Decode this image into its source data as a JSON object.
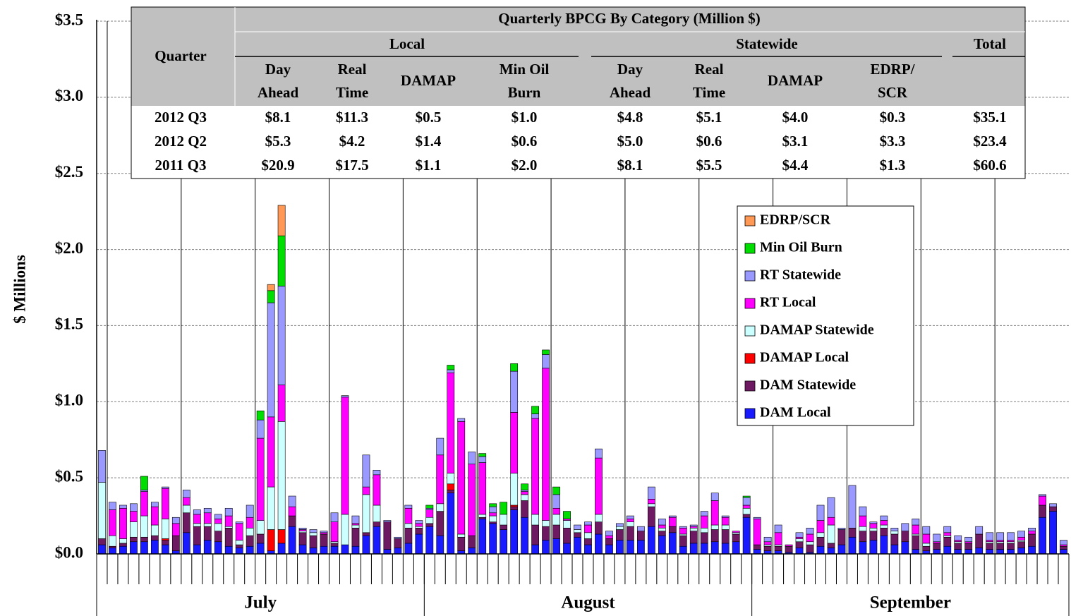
{
  "chart_data": {
    "type": "stacked_bar",
    "ylabel": "$ Millions",
    "ylim": [
      0,
      3.5
    ],
    "yticks": [
      {
        "value": 0,
        "label": "$0.0"
      },
      {
        "value": 0.5,
        "label": "$0.5"
      },
      {
        "value": 1.0,
        "label": "$1.0"
      },
      {
        "value": 1.5,
        "label": "$1.5"
      },
      {
        "value": 2.0,
        "label": "$2.0"
      },
      {
        "value": 2.5,
        "label": "$2.5"
      },
      {
        "value": 3.0,
        "label": "$3.0"
      },
      {
        "value": 3.5,
        "label": "$3.5"
      }
    ],
    "grid": true,
    "legend": "upper right",
    "x_groups": [
      {
        "label": "July",
        "span": 31
      },
      {
        "label": "August",
        "span": 31
      },
      {
        "label": "September",
        "span": 30
      }
    ],
    "categories": [
      null,
      null,
      null,
      null,
      null,
      null,
      null,
      null,
      null,
      null,
      null,
      null,
      null,
      null,
      null,
      null,
      null,
      null,
      null,
      null,
      null,
      null,
      null,
      null,
      null,
      null,
      null,
      null,
      null,
      null,
      null,
      null,
      null,
      null,
      null,
      null,
      null,
      null,
      null,
      null,
      null,
      null,
      null,
      null,
      null,
      null,
      null,
      null,
      null,
      null,
      null,
      null,
      null,
      null,
      null,
      null,
      null,
      null,
      null,
      null,
      null,
      null,
      null,
      null,
      null,
      null,
      null,
      null,
      null,
      null,
      null,
      null,
      null,
      null,
      null,
      null,
      null,
      null,
      null,
      null,
      null,
      null,
      null,
      null,
      null,
      null,
      null,
      null,
      null,
      null,
      null,
      null
    ],
    "series": [
      {
        "name": "DAM Local",
        "color": "#1a1aff",
        "values": [
          0.06,
          0.04,
          0.05,
          0.08,
          0.08,
          0.09,
          0.06,
          0.02,
          0.14,
          0.06,
          0.09,
          0.08,
          0.05,
          0.04,
          0.05,
          0.07,
          0.02,
          0.07,
          0.18,
          0.06,
          0.04,
          0.05,
          0.05,
          0.06,
          0.05,
          0.12,
          0.18,
          0.03,
          0.04,
          0.07,
          0.13,
          0.18,
          0.12,
          0.4,
          0.02,
          0.04,
          0.23,
          0.2,
          0.16,
          0.29,
          0.24,
          0.06,
          0.09,
          0.1,
          0.07,
          0.11,
          0.06,
          0.13,
          0.06,
          0.09,
          0.09,
          0.09,
          0.18,
          0.12,
          0.14,
          0.05,
          0.07,
          0.07,
          0.08,
          0.07,
          0.08,
          0.24,
          0.03,
          0.02,
          0.02,
          0.01,
          0.04,
          0.01,
          0.05,
          0.04,
          0.06,
          0.11,
          0.08,
          0.09,
          0.12,
          0.06,
          0.08,
          0.03,
          0.02,
          0.03,
          0.05,
          0.03,
          0.03,
          0.04,
          0.03,
          0.03,
          0.03,
          0.04,
          0.05,
          0.24,
          0.28,
          0.03
        ]
      },
      {
        "name": "DAM Statewide",
        "color": "#6e1a62",
        "values": [
          0.04,
          0.01,
          0.02,
          0.03,
          0.03,
          0.03,
          0.03,
          0.1,
          0.13,
          0.12,
          0.09,
          0.07,
          0.12,
          0.02,
          0.07,
          0.06,
          0,
          0,
          0.07,
          0.08,
          0.08,
          0.08,
          0.02,
          0,
          0.12,
          0.02,
          0.03,
          0.18,
          0.06,
          0.1,
          0.04,
          0.02,
          0.16,
          0.02,
          0.09,
          0.08,
          0.01,
          0.01,
          0.03,
          0.02,
          0.11,
          0.13,
          0.09,
          0.09,
          0.1,
          0.03,
          0.04,
          0.08,
          0.04,
          0.07,
          0.09,
          0.06,
          0.13,
          0.03,
          0.04,
          0.07,
          0.08,
          0.07,
          0.08,
          0.09,
          0.05,
          0.02,
          0.03,
          0.03,
          0.03,
          0.04,
          0.04,
          0.05,
          0.06,
          0.03,
          0.1,
          0.06,
          0.07,
          0.06,
          0.05,
          0.07,
          0.07,
          0.09,
          0.03,
          0.04,
          0.06,
          0.04,
          0.04,
          0.09,
          0.04,
          0.04,
          0.04,
          0.04,
          0.08,
          0.08,
          0.03,
          0.02
        ]
      },
      {
        "name": "DAMAP Local",
        "color": "#ff0000",
        "values": [
          0,
          0,
          0,
          0,
          0,
          0,
          0.01,
          0,
          0,
          0,
          0,
          0,
          0,
          0,
          0,
          0,
          0.14,
          0.09,
          0,
          0,
          0,
          0,
          0,
          0,
          0,
          0,
          0,
          0,
          0,
          0,
          0,
          0,
          0,
          0.04,
          0,
          0,
          0,
          0,
          0,
          0.01,
          0,
          0,
          0,
          0,
          0,
          0,
          0,
          0,
          0,
          0,
          0,
          0,
          0,
          0,
          0,
          0,
          0,
          0,
          0,
          0,
          0,
          0,
          0,
          0,
          0,
          0,
          0,
          0,
          0,
          0,
          0,
          0,
          0,
          0,
          0,
          0,
          0,
          0,
          0,
          0,
          0,
          0,
          0,
          0,
          0,
          0,
          0,
          0,
          0,
          0,
          0,
          0
        ]
      },
      {
        "name": "DAMAP Statewide",
        "color": "#ccffff",
        "values": [
          0.37,
          0.07,
          0.03,
          0.1,
          0.14,
          0.07,
          0.13,
          0,
          0.05,
          0.02,
          0.02,
          0.05,
          0.01,
          0.03,
          0.05,
          0.09,
          0.28,
          0.71,
          0,
          0.01,
          0.02,
          0,
          0.01,
          0.2,
          0.02,
          0.25,
          0.11,
          0,
          0,
          0.03,
          0.01,
          0.04,
          0.05,
          0.07,
          0.02,
          0,
          0.02,
          0.04,
          0.07,
          0.21,
          0.04,
          0.07,
          0.04,
          0.07,
          0.05,
          0.02,
          0.04,
          0.05,
          0,
          0.02,
          0.03,
          0,
          0.02,
          0.02,
          0,
          0.01,
          0.02,
          0.03,
          0.03,
          0.03,
          0.01,
          0.04,
          0,
          0.01,
          0.01,
          0,
          0.02,
          0.02,
          0.03,
          0.12,
          0,
          0,
          0.03,
          0.02,
          0.02,
          0.02,
          0,
          0.01,
          0.02,
          0,
          0.01,
          0.01,
          0,
          0,
          0.01,
          0.01,
          0.01,
          0.01,
          0,
          0,
          0,
          0
        ]
      },
      {
        "name": "RT Local",
        "color": "#ff00ff",
        "values": [
          0,
          0.17,
          0.2,
          0.07,
          0.16,
          0.12,
          0.2,
          0.08,
          0.05,
          0.06,
          0.07,
          0.03,
          0.07,
          0.11,
          0.07,
          0.54,
          0.46,
          0.24,
          0.06,
          0.01,
          0,
          0.01,
          0.13,
          0.77,
          0.01,
          0.05,
          0.2,
          0,
          0,
          0.1,
          0.02,
          0.05,
          0.32,
          0.66,
          0.74,
          0.47,
          0.34,
          0.02,
          0,
          0.4,
          0.02,
          0.63,
          1.0,
          0.04,
          0.01,
          0,
          0.05,
          0.37,
          0.02,
          0,
          0.02,
          0,
          0.03,
          0.02,
          0.06,
          0.04,
          0.01,
          0.08,
          0.16,
          0.05,
          0.01,
          0.02,
          0.17,
          0.02,
          0.08,
          0.01,
          0.01,
          0.05,
          0.08,
          0.05,
          0,
          0,
          0.07,
          0.03,
          0.03,
          0,
          0,
          0.06,
          0.06,
          0.01,
          0.02,
          0.01,
          0.01,
          0,
          0.01,
          0.01,
          0.01,
          0.02,
          0.02,
          0.06,
          0,
          0.01
        ]
      },
      {
        "name": "RT Statewide",
        "color": "#9999ff",
        "values": [
          0.21,
          0.05,
          0.02,
          0.05,
          0.01,
          0.03,
          0.01,
          0.04,
          0.05,
          0.03,
          0.03,
          0.03,
          0.05,
          0.01,
          0.08,
          0.12,
          0.75,
          0.65,
          0.07,
          0.01,
          0.02,
          0.01,
          0.06,
          0.01,
          0.05,
          0.21,
          0.03,
          0.01,
          0.01,
          0.02,
          0.02,
          0.01,
          0.11,
          0.02,
          0.02,
          0.08,
          0.04,
          0.04,
          0,
          0.27,
          0.01,
          0.03,
          0.09,
          0.09,
          0,
          0.03,
          0.02,
          0.06,
          0.03,
          0.02,
          0.02,
          0.03,
          0.08,
          0.04,
          0.01,
          0.01,
          0.01,
          0.03,
          0.05,
          0.01,
          0,
          0.05,
          0.01,
          0.03,
          0.05,
          0,
          0.03,
          0.04,
          0.1,
          0.13,
          0.01,
          0.28,
          0.06,
          0.01,
          0.03,
          0.02,
          0.05,
          0.04,
          0.05,
          0.05,
          0.04,
          0.03,
          0.03,
          0.05,
          0.05,
          0.05,
          0.05,
          0.04,
          0.02,
          0.01,
          0.02,
          0.03
        ]
      },
      {
        "name": "Min Oil Burn",
        "color": "#00dd00",
        "values": [
          0,
          0,
          0,
          0,
          0.09,
          0,
          0,
          0,
          0,
          0,
          0,
          0,
          0,
          0,
          0,
          0.06,
          0.08,
          0.33,
          0,
          0,
          0,
          0,
          0,
          0,
          0,
          0,
          0,
          0,
          0,
          0,
          0,
          0.02,
          0,
          0.03,
          0,
          0,
          0.02,
          0.02,
          0.08,
          0.05,
          0.04,
          0.05,
          0.03,
          0.05,
          0.05,
          0,
          0,
          0,
          0,
          0,
          0,
          0,
          0,
          0,
          0,
          0,
          0,
          0,
          0,
          0,
          0,
          0.01,
          0,
          0,
          0,
          0,
          0,
          0,
          0,
          0,
          0,
          0,
          0,
          0,
          0,
          0,
          0,
          0,
          0,
          0,
          0,
          0,
          0,
          0,
          0,
          0,
          0,
          0,
          0,
          0,
          0,
          0
        ]
      },
      {
        "name": "EDRP/SCR",
        "color": "#ff9955",
        "values": [
          0,
          0,
          0,
          0,
          0,
          0,
          0,
          0,
          0,
          0,
          0,
          0,
          0,
          0,
          0,
          0,
          0.04,
          0.2,
          0,
          0,
          0,
          0,
          0,
          0,
          0,
          0,
          0,
          0,
          0,
          0,
          0,
          0,
          0,
          0,
          0,
          0,
          0,
          0,
          0,
          0,
          0,
          0,
          0,
          0,
          0,
          0,
          0,
          0,
          0,
          0,
          0,
          0,
          0,
          0,
          0,
          0,
          0,
          0,
          0,
          0,
          0,
          0,
          0,
          0,
          0,
          0,
          0,
          0,
          0,
          0,
          0,
          0,
          0,
          0,
          0,
          0,
          0,
          0,
          0,
          0,
          0,
          0,
          0,
          0,
          0,
          0,
          0,
          0,
          0,
          0,
          0,
          0
        ]
      }
    ]
  },
  "table": {
    "title": "Quarterly BPCG By Category (Million $)",
    "quarter_header": "Quarter",
    "groups": [
      {
        "label": "Local",
        "columns": [
          [
            "Day",
            "Ahead"
          ],
          [
            "Real",
            "Time"
          ],
          [
            "DAMAP"
          ],
          [
            "Min Oil",
            "Burn"
          ]
        ]
      },
      {
        "label": "Statewide",
        "columns": [
          [
            "Day",
            "Ahead"
          ],
          [
            "Real",
            "Time"
          ],
          [
            "DAMAP"
          ],
          [
            "EDRP/",
            "SCR"
          ]
        ]
      },
      {
        "label": "Total",
        "columns": []
      }
    ],
    "rows": [
      [
        "2012 Q3",
        "$8.1",
        "$11.3",
        "$0.5",
        "$1.0",
        "$4.8",
        "$5.1",
        "$4.0",
        "$0.3",
        "$35.1"
      ],
      [
        "2012 Q2",
        "$5.3",
        "$4.2",
        "$1.4",
        "$0.6",
        "$5.0",
        "$0.6",
        "$3.1",
        "$3.3",
        "$23.4"
      ],
      [
        "2011 Q3",
        "$20.9",
        "$17.5",
        "$1.1",
        "$2.0",
        "$8.1",
        "$5.5",
        "$4.4",
        "$1.3",
        "$60.6"
      ]
    ]
  }
}
